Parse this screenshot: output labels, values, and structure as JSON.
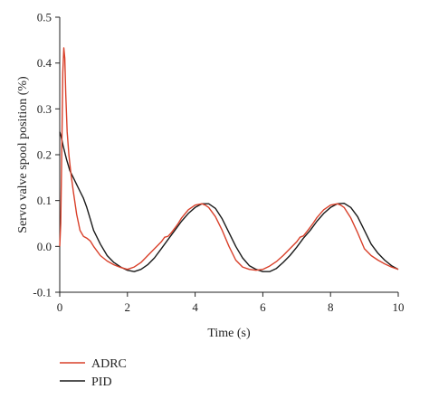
{
  "chart_data": {
    "type": "line",
    "title": "",
    "xlabel": "Time (s)",
    "ylabel": "Servo valve spool position (%)",
    "xlim": [
      0,
      10
    ],
    "ylim": [
      -0.1,
      0.5
    ],
    "xticks": [
      0,
      2,
      4,
      6,
      8,
      10
    ],
    "yticks": [
      -0.1,
      0.0,
      0.1,
      0.2,
      0.3,
      0.4,
      0.5
    ],
    "xtick_labels": [
      "0",
      "2",
      "4",
      "6",
      "8",
      "10"
    ],
    "ytick_labels": [
      "-0.1",
      "0.0",
      "0.1",
      "0.2",
      "0.3",
      "0.4",
      "0.5"
    ],
    "grid": false,
    "legend_position": "bottom-left",
    "series": [
      {
        "name": "ADRC",
        "color": "#d9402a",
        "x": [
          0,
          0.03,
          0.06,
          0.09,
          0.12,
          0.15,
          0.18,
          0.22,
          0.27,
          0.33,
          0.4,
          0.5,
          0.6,
          0.7,
          0.8,
          0.9,
          1.0,
          1.2,
          1.4,
          1.6,
          1.8,
          2.0,
          2.2,
          2.4,
          2.6,
          2.8,
          3.0,
          3.1,
          3.2,
          3.3,
          3.4,
          3.5,
          3.6,
          3.8,
          4.0,
          4.2,
          4.3,
          4.4,
          4.6,
          4.8,
          5.0,
          5.2,
          5.4,
          5.6,
          5.8,
          6.0,
          6.2,
          6.4,
          6.6,
          6.8,
          7.0,
          7.1,
          7.2,
          7.3,
          7.4,
          7.5,
          7.6,
          7.8,
          8.0,
          8.2,
          8.3,
          8.4,
          8.6,
          8.8,
          9.0,
          9.2,
          9.4,
          9.6,
          9.8,
          10.0
        ],
        "y": [
          0.0,
          0.05,
          0.2,
          0.38,
          0.433,
          0.41,
          0.33,
          0.25,
          0.2,
          0.16,
          0.12,
          0.07,
          0.035,
          0.022,
          0.018,
          0.012,
          0.0,
          -0.02,
          -0.032,
          -0.04,
          -0.046,
          -0.05,
          -0.045,
          -0.035,
          -0.02,
          -0.005,
          0.01,
          0.02,
          0.022,
          0.03,
          0.04,
          0.05,
          0.062,
          0.08,
          0.09,
          0.093,
          0.09,
          0.085,
          0.065,
          0.035,
          0.0,
          -0.03,
          -0.045,
          -0.05,
          -0.052,
          -0.05,
          -0.043,
          -0.033,
          -0.02,
          -0.005,
          0.01,
          0.02,
          0.023,
          0.032,
          0.042,
          0.052,
          0.063,
          0.08,
          0.09,
          0.093,
          0.09,
          0.085,
          0.062,
          0.03,
          -0.005,
          -0.02,
          -0.03,
          -0.038,
          -0.045,
          -0.05
        ]
      },
      {
        "name": "PID",
        "color": "#1a1a1a",
        "x": [
          0,
          0.04,
          0.1,
          0.2,
          0.3,
          0.4,
          0.5,
          0.6,
          0.7,
          0.8,
          0.9,
          1.0,
          1.2,
          1.4,
          1.6,
          1.8,
          2.0,
          2.2,
          2.4,
          2.6,
          2.8,
          3.0,
          3.2,
          3.4,
          3.6,
          3.8,
          4.0,
          4.2,
          4.4,
          4.6,
          4.8,
          5.0,
          5.2,
          5.4,
          5.6,
          5.8,
          6.0,
          6.2,
          6.4,
          6.6,
          6.8,
          7.0,
          7.2,
          7.4,
          7.6,
          7.8,
          8.0,
          8.2,
          8.4,
          8.6,
          8.8,
          9.0,
          9.2,
          9.4,
          9.6,
          9.8,
          10.0
        ],
        "y": [
          0.25,
          0.24,
          0.22,
          0.19,
          0.165,
          0.15,
          0.135,
          0.12,
          0.105,
          0.085,
          0.06,
          0.035,
          0.005,
          -0.02,
          -0.035,
          -0.045,
          -0.052,
          -0.055,
          -0.05,
          -0.04,
          -0.025,
          -0.005,
          0.015,
          0.035,
          0.055,
          0.072,
          0.085,
          0.093,
          0.093,
          0.083,
          0.06,
          0.03,
          0.0,
          -0.025,
          -0.042,
          -0.05,
          -0.055,
          -0.055,
          -0.048,
          -0.035,
          -0.02,
          -0.002,
          0.018,
          0.035,
          0.055,
          0.072,
          0.085,
          0.093,
          0.094,
          0.085,
          0.065,
          0.035,
          0.005,
          -0.015,
          -0.03,
          -0.042,
          -0.05
        ]
      }
    ]
  }
}
